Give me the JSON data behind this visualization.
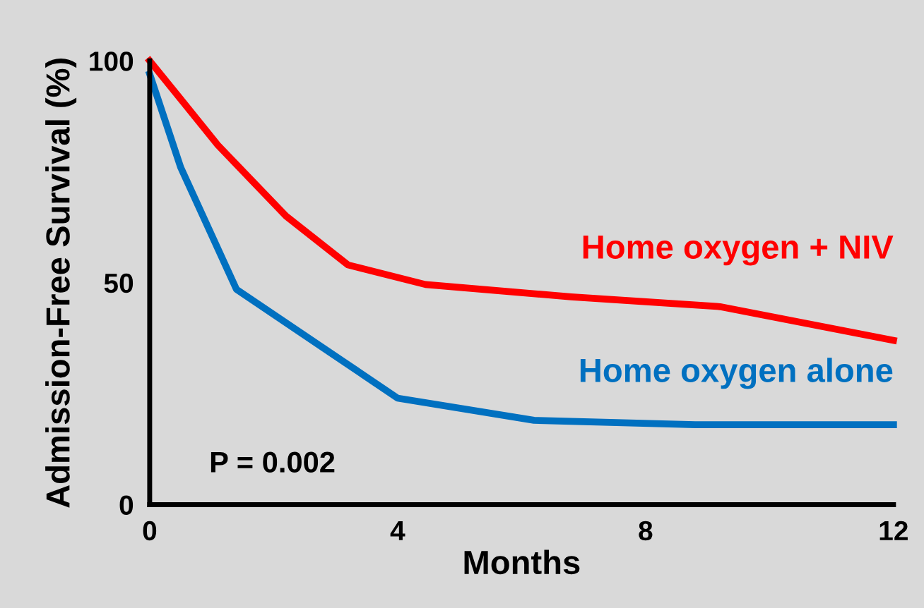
{
  "chart_data": {
    "type": "line",
    "xlabel": "Months",
    "ylabel": "Admission-Free Survival (%)",
    "xlim": [
      0,
      12
    ],
    "ylim": [
      0,
      100
    ],
    "xticks": [
      0,
      4,
      8,
      12
    ],
    "yticks": [
      0,
      50,
      100
    ],
    "grid": false,
    "legend": false,
    "marker": "none",
    "line_style": "solid",
    "annotations": [
      "P = 0.002"
    ],
    "series": [
      {
        "name": "Home oxygen + NIV",
        "color": "#ff0000",
        "x": [
          0,
          1.1,
          2.2,
          3.2,
          4.45,
          6.8,
          9.2,
          12
        ],
        "values": [
          100,
          81,
          65,
          54,
          49.6,
          46.8,
          44.6,
          37
        ]
      },
      {
        "name": "Home oxygen alone",
        "color": "#0070c0",
        "x": [
          0,
          0.5,
          1.4,
          4,
          6.2,
          8.8,
          12
        ],
        "values": [
          97,
          76,
          48.5,
          24,
          19,
          18,
          18
        ]
      }
    ]
  }
}
